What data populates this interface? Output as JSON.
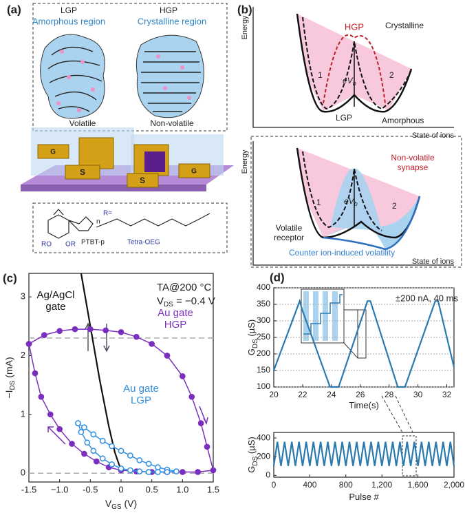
{
  "panel_labels": [
    "(a)",
    "(b)",
    "(c)",
    "(d)"
  ],
  "panel_a": {
    "lgp": "LGP",
    "hgp": "HGP",
    "amorphous": "Amorphous region",
    "crystalline": "Crystalline region",
    "volatile": "Volatile",
    "nonvolatile": "Non-volatile",
    "gate": "G",
    "source": "S",
    "r_eq": "R=",
    "polymer": "PTBT-p",
    "side_chain": "Tetra-OEG",
    "n": "n",
    "ro": "RO",
    "or": "OR"
  },
  "panel_b": {
    "top": {
      "energy": "Energy",
      "state": "State of ions",
      "hgp": "HGP",
      "crystalline": "Crystalline",
      "well1": "1",
      "well2": "2",
      "barrier": {
        "text": "eV",
        "sub": "b"
      },
      "lgp": "LGP",
      "amorphous": "Amorphous"
    },
    "bottom": {
      "energy": "Energy",
      "state": "State of ions",
      "synapse": [
        "Non-volatile",
        "synapse"
      ],
      "well1": "1",
      "well2": "2",
      "barrier": {
        "text": "eV",
        "sub": "b"
      },
      "receptor": [
        "Volatile",
        "receptor"
      ],
      "counter": "Counter ion-induced volatility"
    }
  },
  "chart_data": [
    {
      "type": "line",
      "xlabel": {
        "text": "V",
        "sub": "GS",
        "suffix": " (V)"
      },
      "ylabel": {
        "text": "−I",
        "sub": "DS",
        "suffix": " (mA)"
      },
      "annotations": [
        "TA@200 °C"
      ],
      "annotation_vds": {
        "text": "V",
        "sub": "DS",
        "suffix": " = −0.4 V"
      },
      "xlim": [
        -1.5,
        1.5
      ],
      "xticks": [
        -1.5,
        {
          "value": -1,
          "label": "−1.0"
        },
        -0.5,
        0,
        0.5,
        {
          "value": 1,
          "label": "1.0"
        },
        1.5
      ],
      "ylim": [
        -0.15,
        3.4
      ],
      "yticks": [
        0,
        1,
        2,
        3
      ],
      "hlines": [
        0,
        2.3
      ],
      "series": [
        {
          "name": "Ag/AgCl gate",
          "color": "#111111",
          "marker": "none",
          "x": [
            -0.65,
            -0.5,
            -0.35,
            -0.2,
            -0.1,
            0
          ],
          "values": [
            3.4,
            2.5,
            1.6,
            0.8,
            0.35,
            0.05
          ]
        },
        {
          "name": "Au gate HGP",
          "color": "#7b2fbe",
          "marker": "filled",
          "x": [
            -1.5,
            -1.25,
            -1.0,
            -0.75,
            -0.5,
            -0.25,
            0,
            0.25,
            0.5,
            0.75,
            1.0,
            1.15,
            1.3,
            1.4,
            1.5,
            1.25,
            1.0,
            0.75,
            0.5,
            0.25,
            0,
            -0.2,
            -0.4,
            -0.6,
            -0.8,
            -1.0,
            -1.15,
            -1.3,
            -1.4,
            -1.5
          ],
          "values": [
            2.2,
            2.35,
            2.42,
            2.45,
            2.45,
            2.43,
            2.4,
            2.32,
            2.2,
            2.0,
            1.65,
            1.3,
            0.85,
            0.45,
            0.05,
            0.02,
            0.02,
            0.02,
            0.02,
            0.03,
            0.05,
            0.1,
            0.2,
            0.33,
            0.5,
            0.75,
            1.0,
            1.3,
            1.7,
            2.2
          ]
        },
        {
          "name": "Au gate LGP",
          "color": "#2f8fe0",
          "marker": "open",
          "x": [
            -0.7,
            -0.6,
            -0.45,
            -0.3,
            -0.15,
            0,
            0.15,
            0.3,
            0.45,
            0.6,
            0.75,
            0.9,
            0.75,
            0.6,
            0.45,
            0.3,
            0.15,
            0,
            -0.15,
            -0.3,
            -0.45,
            -0.55,
            -0.65,
            -0.7
          ],
          "values": [
            0.85,
            0.78,
            0.66,
            0.55,
            0.46,
            0.38,
            0.3,
            0.22,
            0.16,
            0.1,
            0.06,
            0.03,
            0.02,
            0.02,
            0.02,
            0.03,
            0.05,
            0.08,
            0.15,
            0.25,
            0.38,
            0.52,
            0.7,
            0.85
          ]
        }
      ]
    },
    {
      "type": "line",
      "xlabel": {
        "text": "Time(s)"
      },
      "ylabel": {
        "text": "G",
        "sub": "DS",
        "suffix": " (µS)"
      },
      "annotations": [
        "±200 nA, 40 ms"
      ],
      "xlim": [
        20,
        32.5
      ],
      "xticks": [
        20,
        22,
        24,
        26,
        28,
        30,
        32
      ],
      "ylim": [
        100,
        400
      ],
      "yticks": [
        100,
        150,
        200,
        250,
        300,
        350,
        400
      ],
      "grid": true,
      "series": [
        {
          "name": null,
          "color": "#2a7ab0",
          "marker": "none",
          "x": [
            20,
            21.8,
            22.0,
            23.9,
            24.5,
            26.5,
            26.7,
            28.6,
            29.1,
            31.2,
            31.4,
            32.5
          ],
          "values": [
            150,
            360,
            330,
            100,
            100,
            360,
            360,
            100,
            100,
            360,
            360,
            160
          ]
        }
      ]
    },
    {
      "type": "line",
      "xlabel": {
        "text": "Pulse #"
      },
      "ylabel": {
        "text": "G",
        "sub": "DS",
        "suffix": " (µS)"
      },
      "xlim": [
        0,
        2000
      ],
      "xticks": [
        0,
        400,
        800,
        {
          "value": 1200,
          "label": "1,200"
        },
        {
          "value": 1600,
          "label": "1,600"
        },
        {
          "value": 2000,
          "label": "2,000"
        }
      ],
      "ylim": [
        -20,
        460
      ],
      "yticks": [
        0,
        200,
        400
      ],
      "series": [
        {
          "name": null,
          "color": "#2a7ab0",
          "marker": "none",
          "x": [
            0,
            40,
            80,
            120,
            160,
            200,
            240,
            280,
            320,
            360,
            400,
            440,
            480,
            520,
            560,
            600,
            640,
            680,
            720,
            760,
            800,
            840,
            880,
            920,
            960,
            1000,
            1040,
            1080,
            1120,
            1160,
            1200,
            1240,
            1280,
            1320,
            1360,
            1400,
            1440,
            1480,
            1520,
            1560,
            1600,
            1640,
            1680,
            1720,
            1760,
            1800,
            1840,
            1880,
            1920,
            1960,
            2000
          ],
          "values": [
            100,
            360,
            100,
            360,
            100,
            360,
            100,
            360,
            100,
            360,
            100,
            360,
            100,
            360,
            100,
            360,
            100,
            360,
            100,
            360,
            100,
            360,
            100,
            360,
            100,
            360,
            100,
            360,
            100,
            360,
            100,
            360,
            100,
            360,
            100,
            360,
            100,
            360,
            100,
            360,
            100,
            360,
            100,
            360,
            100,
            360,
            100,
            360,
            100,
            360,
            100
          ]
        }
      ]
    }
  ]
}
